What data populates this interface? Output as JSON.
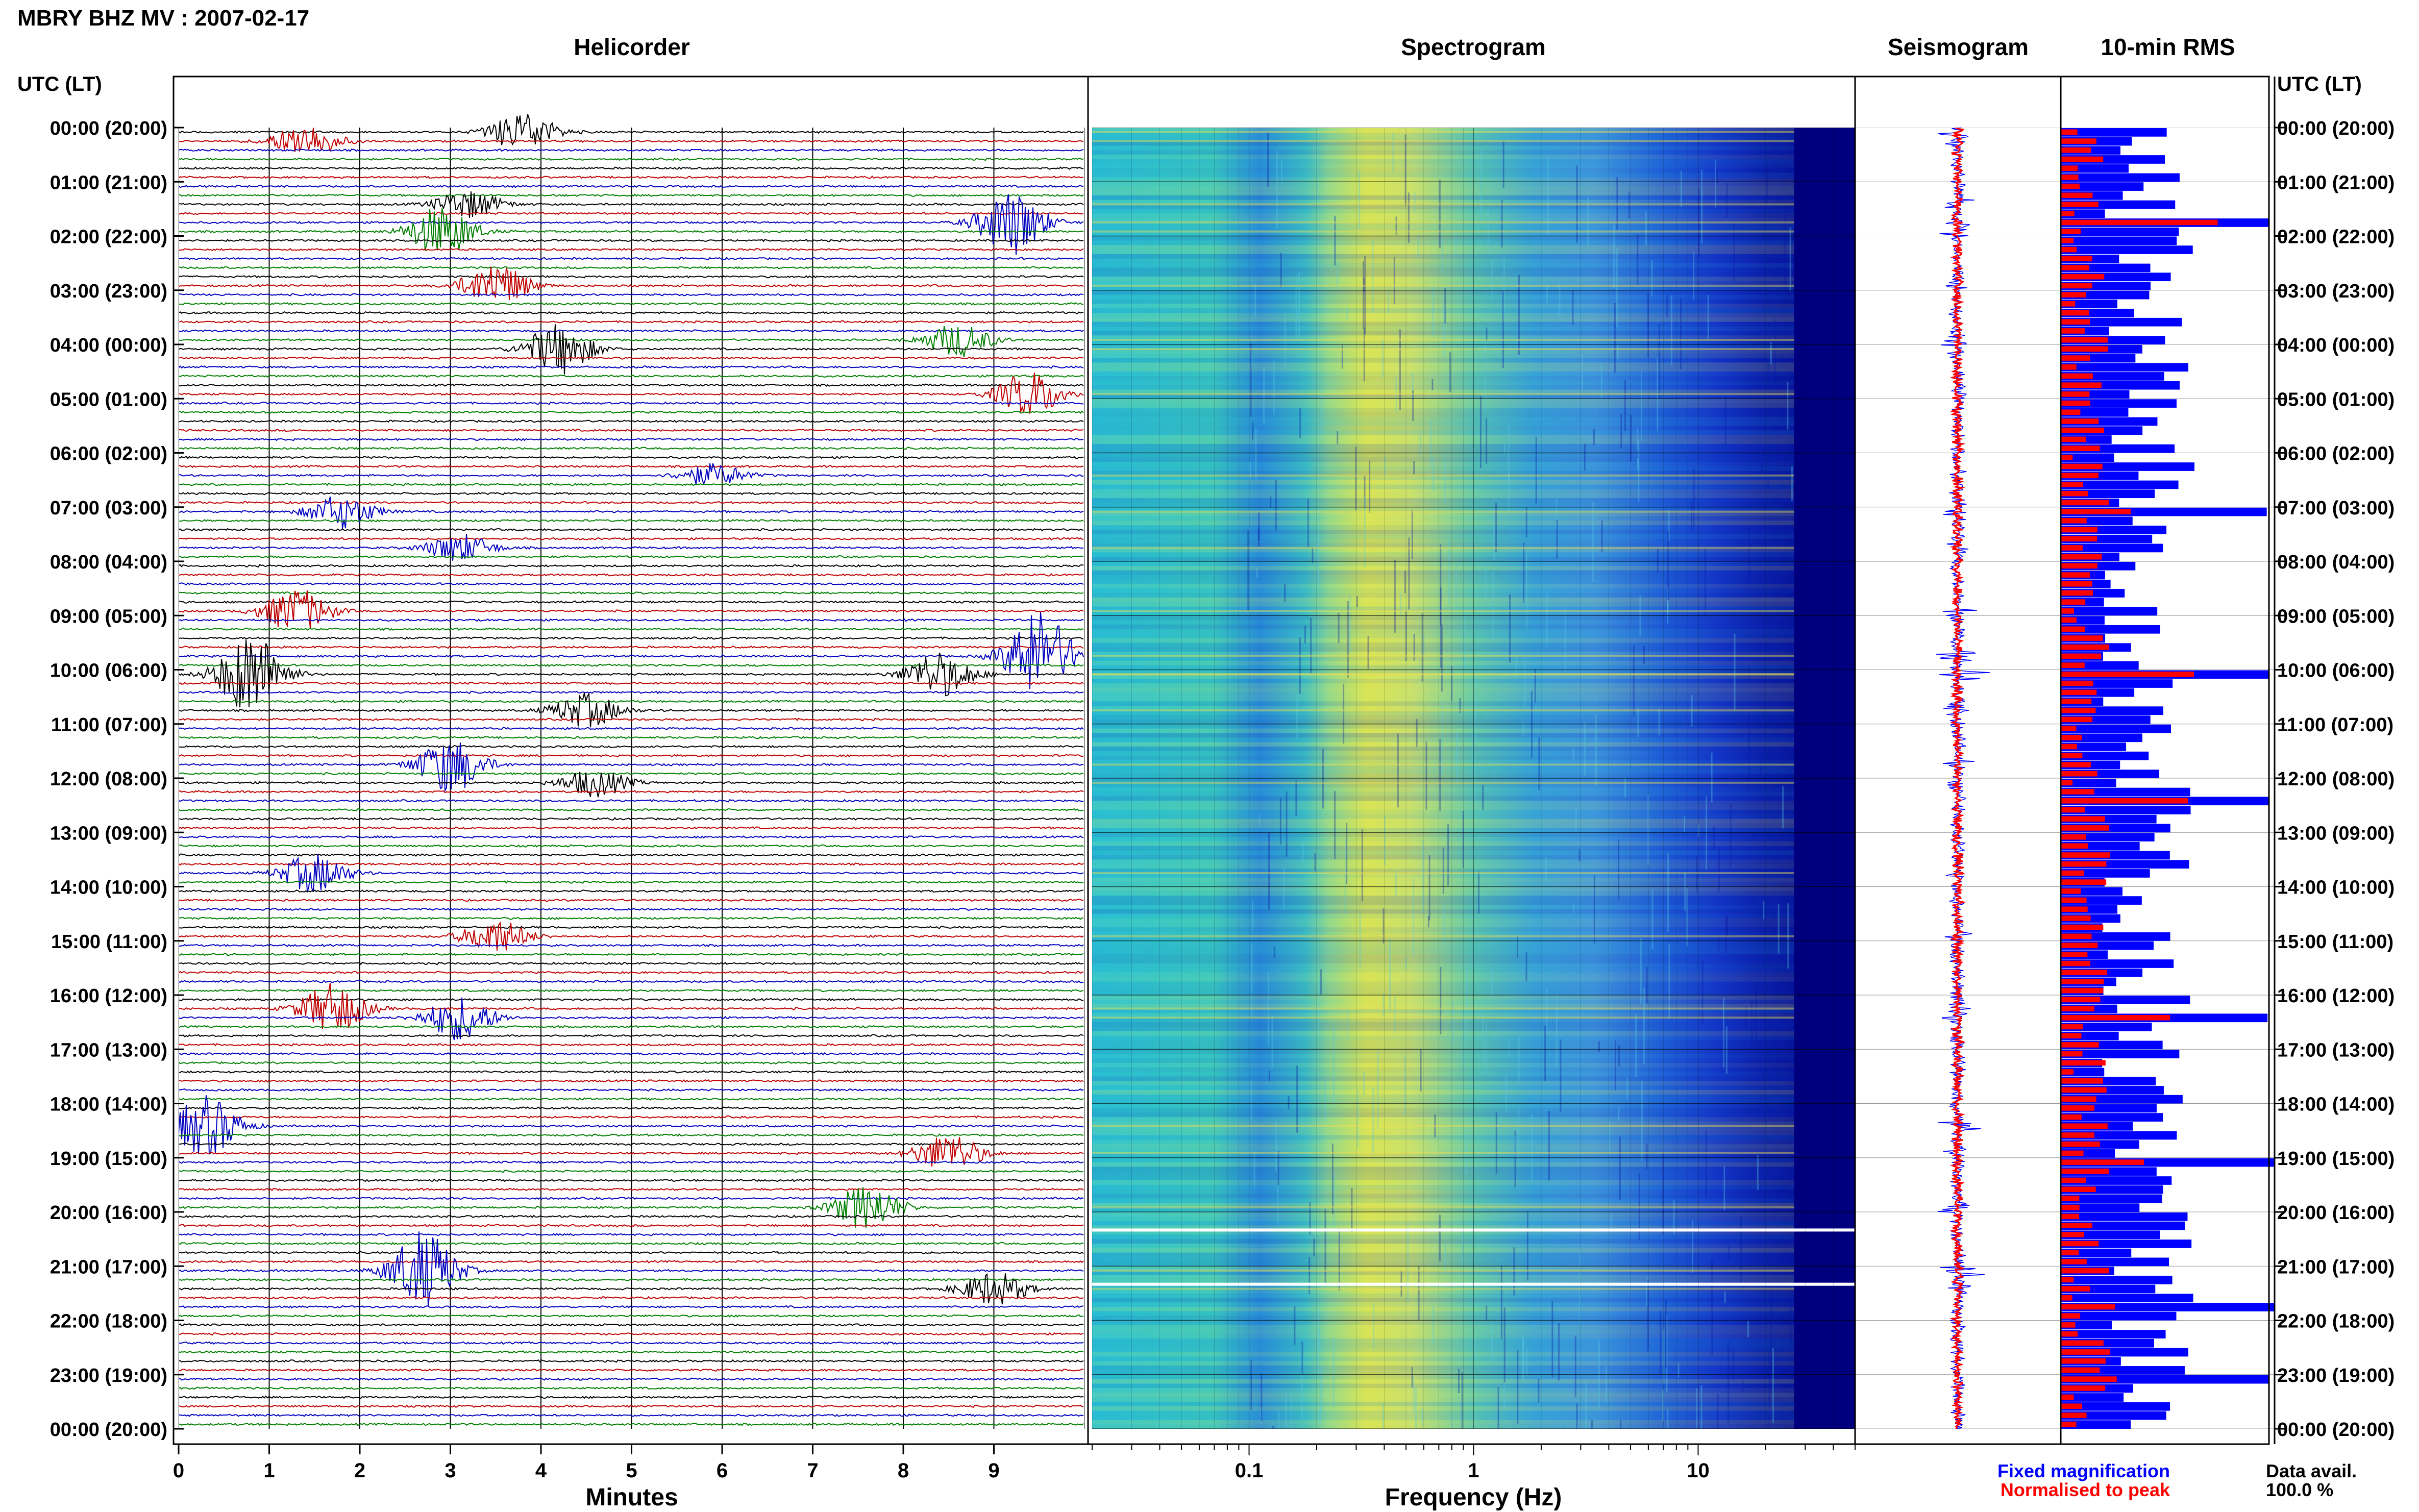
{
  "header": {
    "station_title": "MBRY BHZ MV : 2007-02-17",
    "panel_titles": {
      "helicorder": "Helicorder",
      "spectrogram": "Spectrogram",
      "seismogram": "Seismogram",
      "rms": "10-min RMS"
    },
    "time_axis_label": "UTC (LT)"
  },
  "time_labels": [
    "00:00 (20:00)",
    "01:00 (21:00)",
    "02:00 (22:00)",
    "03:00 (23:00)",
    "04:00 (00:00)",
    "05:00 (01:00)",
    "06:00 (02:00)",
    "07:00 (03:00)",
    "08:00 (04:00)",
    "09:00 (05:00)",
    "10:00 (06:00)",
    "11:00 (07:00)",
    "12:00 (08:00)",
    "13:00 (09:00)",
    "14:00 (10:00)",
    "15:00 (11:00)",
    "16:00 (12:00)",
    "17:00 (13:00)",
    "18:00 (14:00)",
    "19:00 (15:00)",
    "20:00 (16:00)",
    "21:00 (17:00)",
    "22:00 (18:00)",
    "23:00 (19:00)",
    "00:00 (20:00)"
  ],
  "legend": {
    "fixed": "Fixed magnification",
    "normalised": "Normalised to peak",
    "fixed_color": "#0000ff",
    "normalised_color": "#ff0000"
  },
  "data_availability": {
    "label": "Data avail.",
    "value": "100.0 %"
  },
  "colors": {
    "trace_cycle": [
      "#000000",
      "#c00000",
      "#0000c0",
      "#008000"
    ],
    "spectrogram_low": "#00008b",
    "spectrogram_mid": "#22c9c9",
    "spectrogram_high": "#e8e84a",
    "rms_fixed": "#0000ff",
    "rms_normalised": "#ff0000"
  },
  "chart_data": [
    {
      "type": "line",
      "title": "Helicorder",
      "xlabel": "Minutes",
      "ylabel": "UTC (LT)",
      "x_ticks": [
        "0",
        "1",
        "2",
        "3",
        "4",
        "5",
        "6",
        "7",
        "8",
        "9"
      ],
      "xlim": [
        0,
        10
      ],
      "rows": 144,
      "row_minutes": 10,
      "events": [
        {
          "row": 0,
          "minute": 3.8,
          "amp": 0.7
        },
        {
          "row": 1,
          "minute": 1.4,
          "amp": 0.6
        },
        {
          "row": 8,
          "minute": 3.2,
          "amp": 0.5
        },
        {
          "row": 10,
          "minute": 9.2,
          "amp": 1.2
        },
        {
          "row": 11,
          "minute": 2.9,
          "amp": 0.9
        },
        {
          "row": 17,
          "minute": 3.5,
          "amp": 0.8
        },
        {
          "row": 23,
          "minute": 8.6,
          "amp": 0.6
        },
        {
          "row": 24,
          "minute": 4.2,
          "amp": 0.9
        },
        {
          "row": 29,
          "minute": 9.4,
          "amp": 0.8
        },
        {
          "row": 38,
          "minute": 5.9,
          "amp": 0.4
        },
        {
          "row": 42,
          "minute": 1.8,
          "amp": 0.6
        },
        {
          "row": 46,
          "minute": 3.1,
          "amp": 0.5
        },
        {
          "row": 53,
          "minute": 1.3,
          "amp": 0.8
        },
        {
          "row": 58,
          "minute": 9.5,
          "amp": 1.6
        },
        {
          "row": 60,
          "minute": 0.8,
          "amp": 1.5
        },
        {
          "row": 60,
          "minute": 8.4,
          "amp": 0.8
        },
        {
          "row": 64,
          "minute": 4.5,
          "amp": 0.6
        },
        {
          "row": 70,
          "minute": 3.0,
          "amp": 1.0
        },
        {
          "row": 72,
          "minute": 4.6,
          "amp": 0.5
        },
        {
          "row": 82,
          "minute": 1.5,
          "amp": 0.7
        },
        {
          "row": 89,
          "minute": 3.5,
          "amp": 0.6
        },
        {
          "row": 97,
          "minute": 1.7,
          "amp": 0.9
        },
        {
          "row": 98,
          "minute": 3.1,
          "amp": 0.8
        },
        {
          "row": 110,
          "minute": 0.3,
          "amp": 1.1
        },
        {
          "row": 113,
          "minute": 8.5,
          "amp": 0.7
        },
        {
          "row": 119,
          "minute": 7.6,
          "amp": 0.8
        },
        {
          "row": 126,
          "minute": 2.7,
          "amp": 1.4
        },
        {
          "row": 128,
          "minute": 9.0,
          "amp": 0.6
        }
      ]
    },
    {
      "type": "heatmap",
      "title": "Spectrogram",
      "xlabel": "Frequency (Hz)",
      "x_ticks": [
        "0.1",
        "1",
        "10"
      ],
      "x_scale": "log",
      "xlim": [
        0.02,
        50
      ],
      "peak_frequency_hz": 0.4,
      "gap_rows": [
        122,
        128
      ]
    },
    {
      "type": "line",
      "title": "Seismogram",
      "series": [
        {
          "name": "Fixed magnification",
          "color": "#0000ff"
        },
        {
          "name": "Normalised to peak",
          "color": "#ff0000"
        }
      ]
    },
    {
      "type": "bar",
      "title": "10-min RMS",
      "orientation": "horizontal",
      "series": [
        {
          "name": "Fixed magnification",
          "color": "#0000ff"
        },
        {
          "name": "Normalised to peak",
          "color": "#ff0000"
        }
      ],
      "peak_rows": [
        10,
        42,
        60,
        74,
        98,
        114,
        130,
        138
      ]
    }
  ]
}
